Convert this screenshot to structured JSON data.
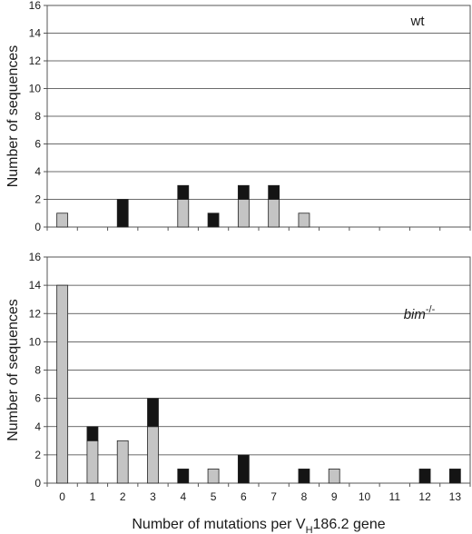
{
  "chart_data": [
    {
      "type": "bar",
      "stacked": true,
      "panel_label": "wt",
      "ylabel": "Number of sequences",
      "ylim": [
        0,
        16
      ],
      "yticks": [
        0,
        2,
        4,
        6,
        8,
        10,
        12,
        14,
        16
      ],
      "grid": true,
      "categories": [
        "0",
        "1",
        "2",
        "3",
        "4",
        "5",
        "6",
        "7",
        "8",
        "9",
        "10",
        "11",
        "12",
        "13"
      ],
      "series": [
        {
          "color": "#c4c4c4",
          "values": [
            1,
            0,
            0,
            0,
            2,
            0,
            2,
            2,
            1,
            0,
            0,
            0,
            0,
            0
          ]
        },
        {
          "color": "#141414",
          "values": [
            0,
            0,
            2,
            0,
            1,
            1,
            1,
            1,
            0,
            0,
            0,
            0,
            0,
            0
          ]
        }
      ]
    },
    {
      "type": "bar",
      "stacked": true,
      "panel_label": "bim",
      "panel_label_sup": "-/-",
      "ylabel": "Number of sequences",
      "ylim": [
        0,
        16
      ],
      "yticks": [
        0,
        2,
        4,
        6,
        8,
        10,
        12,
        14,
        16
      ],
      "grid": true,
      "categories": [
        "0",
        "1",
        "2",
        "3",
        "4",
        "5",
        "6",
        "7",
        "8",
        "9",
        "10",
        "11",
        "12",
        "13"
      ],
      "series": [
        {
          "color": "#c4c4c4",
          "values": [
            14,
            3,
            3,
            4,
            0,
            1,
            0,
            0,
            0,
            1,
            0,
            0,
            0,
            0
          ]
        },
        {
          "color": "#141414",
          "values": [
            0,
            1,
            0,
            2,
            1,
            0,
            2,
            0,
            1,
            0,
            0,
            0,
            1,
            1
          ]
        }
      ]
    }
  ],
  "xlabel": {
    "before": "Number of mutations per V",
    "subscript": "H",
    "after": "186.2 gene"
  }
}
